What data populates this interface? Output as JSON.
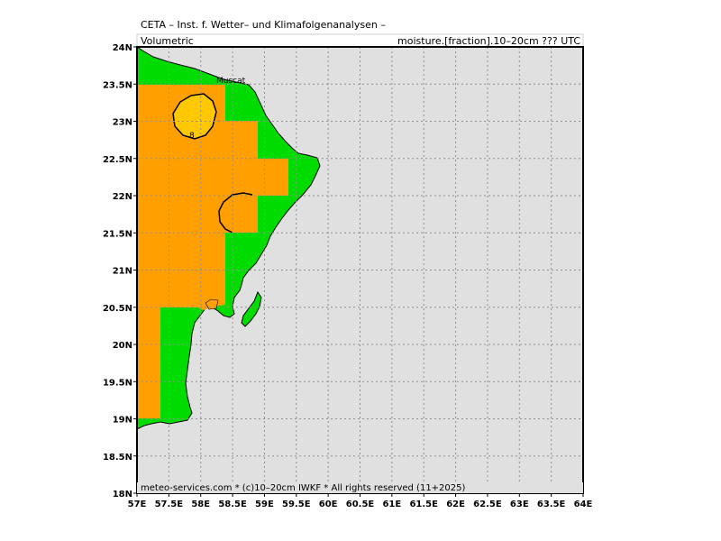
{
  "header": {
    "line1": "CETA – Inst. f. Wetter– und Klimafolgenanalysen –",
    "left": "Volumetric",
    "right": "moisture.[fraction].10–20cm ??? UTC"
  },
  "footer": {
    "text": "meteo-services.com * (c)10–20cm IWKF * All rights reserved (11+2025)"
  },
  "map": {
    "city_label": "Muscat",
    "contour_label": "8",
    "x_ticks": [
      "57E",
      "57.5E",
      "58E",
      "58.5E",
      "59E",
      "59.5E",
      "60E",
      "60.5E",
      "61E",
      "61.5E",
      "62E",
      "62.5E",
      "63E",
      "63.5E",
      "64E"
    ],
    "y_ticks": [
      "24N",
      "23.5N",
      "23N",
      "22.5N",
      "22N",
      "21.5N",
      "21N",
      "20.5N",
      "20N",
      "19.5N",
      "19N",
      "18.5N",
      "18N"
    ],
    "lon_range": [
      57,
      64
    ],
    "lat_range": [
      18,
      24
    ],
    "grid": "dotted",
    "colors": {
      "sea": "#e0e0e0",
      "land_low": "#00dc00",
      "land_mid": "#ffa000",
      "land_high": "#ffc800",
      "coast": "#000000"
    }
  }
}
